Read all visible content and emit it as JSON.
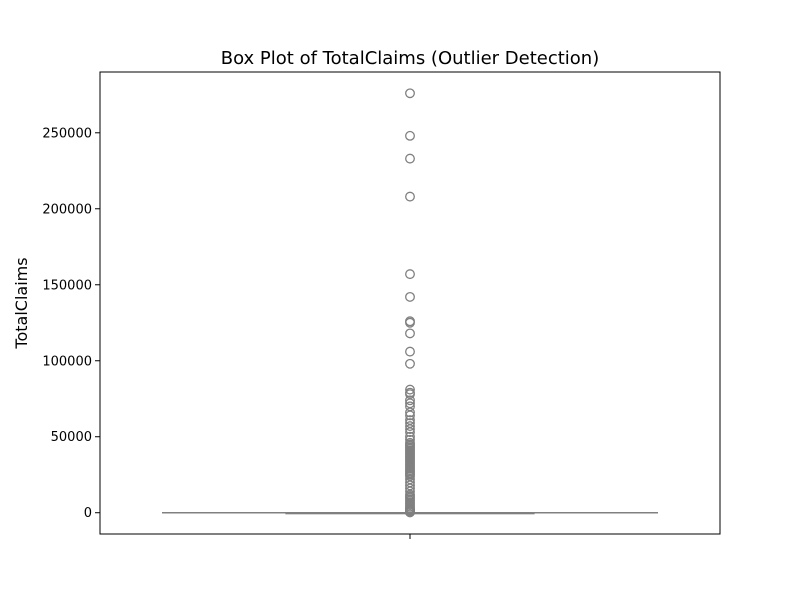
{
  "chart_data": {
    "type": "box",
    "title": "Box Plot of TotalClaims (Outlier Detection)",
    "xlabel": "",
    "ylabel": "TotalClaims",
    "ylim": [
      -14000,
      290000
    ],
    "yticks": [
      0,
      50000,
      100000,
      150000,
      200000,
      250000
    ],
    "ytick_labels": [
      "0",
      "50000",
      "100000",
      "150000",
      "200000",
      "250000"
    ],
    "grid": false,
    "legend": "none",
    "box": {
      "whisker_low": 0,
      "q1": 0,
      "median": 0,
      "q3": 0,
      "whisker_high": 0,
      "color": "#808080"
    },
    "outliers": [
      276000,
      248000,
      233000,
      208000,
      157000,
      142000,
      126000,
      125000,
      118000,
      106000,
      98000,
      81000,
      79000,
      78000,
      74000,
      72000,
      70000,
      66000,
      64000,
      61000,
      59000,
      57000,
      55000,
      53000,
      50000,
      48000,
      46000,
      45000,
      44000,
      43000,
      42000,
      41000,
      40000,
      39000,
      38000,
      37000,
      36000,
      35000,
      34000,
      33000,
      32000,
      31000,
      30000,
      29000,
      28000,
      27000,
      26000,
      25000,
      24000,
      22000,
      20000,
      18000,
      16000,
      14000,
      12000,
      11000,
      10000,
      9000,
      8000,
      7000,
      6000,
      5000,
      4000,
      3000,
      2500,
      2000,
      1500,
      1000,
      500,
      200
    ]
  }
}
